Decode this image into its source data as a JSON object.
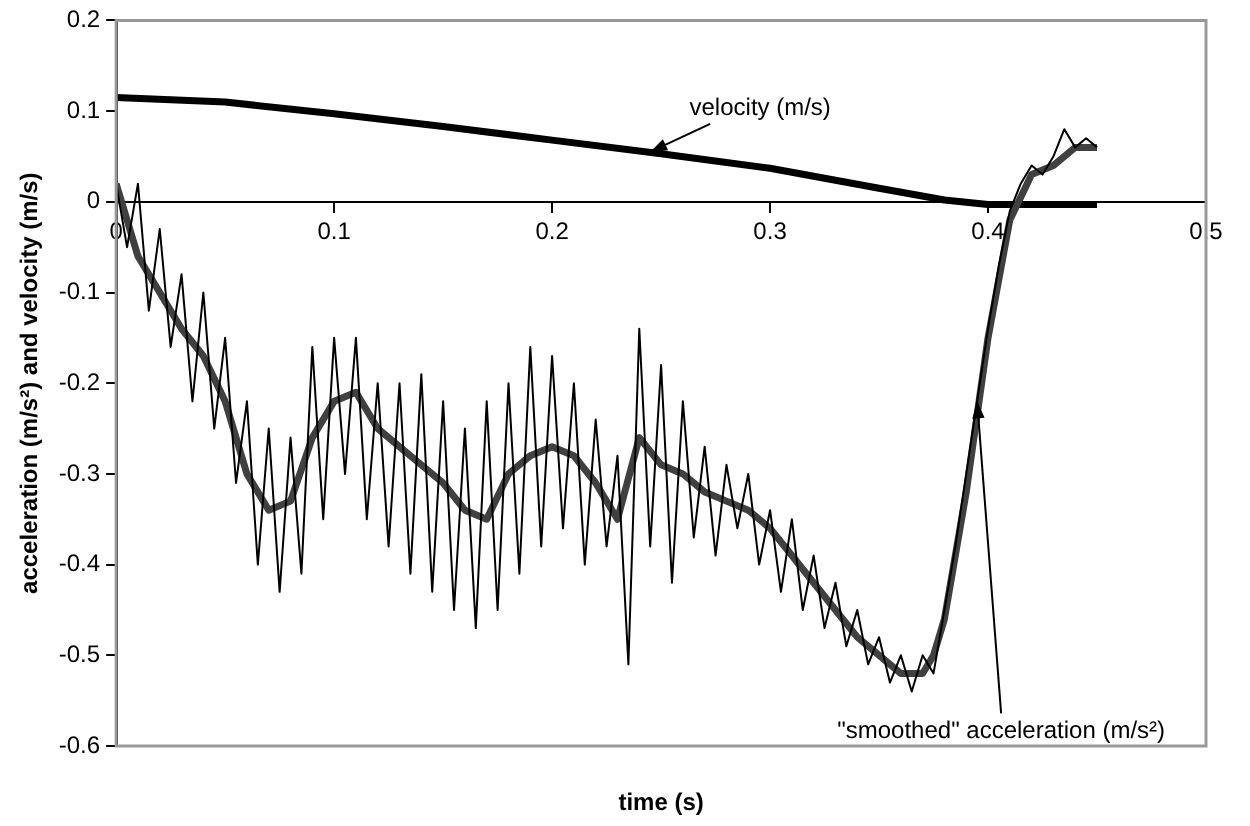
{
  "chart_data": {
    "type": "line",
    "xlabel": "time (s)",
    "ylabel": "acceleration (m/s²) and velocity (m/s)",
    "xlim": [
      0,
      0.5
    ],
    "xticks": [
      0,
      0.1,
      0.2,
      0.3,
      0.4,
      0.5
    ],
    "ylim": [
      -0.6,
      0.2
    ],
    "yticks": [
      -0.6,
      -0.5,
      -0.4,
      -0.3,
      -0.2,
      -0.1,
      0,
      0.1,
      0.2
    ],
    "grid": false,
    "legend": false,
    "marker": "none",
    "line_style": "solid",
    "series": [
      {
        "color": "#000000",
        "x": [
          0,
          0.005,
          0.01,
          0.015,
          0.02,
          0.025,
          0.03,
          0.035,
          0.04,
          0.045,
          0.05,
          0.055,
          0.06,
          0.065,
          0.07,
          0.075,
          0.08,
          0.085,
          0.09,
          0.095,
          0.1,
          0.105,
          0.11,
          0.115,
          0.12,
          0.125,
          0.13,
          0.135,
          0.14,
          0.145,
          0.15,
          0.155,
          0.16,
          0.165,
          0.17,
          0.175,
          0.18,
          0.185,
          0.19,
          0.195,
          0.2,
          0.205,
          0.21,
          0.215,
          0.22,
          0.225,
          0.23,
          0.235,
          0.24,
          0.245,
          0.25,
          0.255,
          0.26,
          0.265,
          0.27,
          0.275,
          0.28,
          0.285,
          0.29,
          0.295,
          0.3,
          0.305,
          0.31,
          0.315,
          0.32,
          0.325,
          0.33,
          0.335,
          0.34,
          0.345,
          0.35,
          0.355,
          0.36,
          0.365,
          0.37,
          0.375,
          0.38,
          0.385,
          0.39,
          0.395,
          0.4,
          0.405,
          0.41,
          0.415,
          0.42,
          0.425,
          0.43,
          0.435,
          0.44,
          0.445,
          0.45
        ],
        "values": [
          0.02,
          -0.05,
          0.02,
          -0.12,
          -0.03,
          -0.16,
          -0.08,
          -0.22,
          -0.1,
          -0.25,
          -0.15,
          -0.31,
          -0.22,
          -0.4,
          -0.25,
          -0.43,
          -0.26,
          -0.41,
          -0.16,
          -0.35,
          -0.15,
          -0.3,
          -0.15,
          -0.35,
          -0.2,
          -0.38,
          -0.2,
          -0.41,
          -0.19,
          -0.43,
          -0.22,
          -0.45,
          -0.25,
          -0.47,
          -0.22,
          -0.45,
          -0.2,
          -0.41,
          -0.16,
          -0.38,
          -0.17,
          -0.36,
          -0.2,
          -0.4,
          -0.24,
          -0.38,
          -0.28,
          -0.51,
          -0.14,
          -0.38,
          -0.18,
          -0.42,
          -0.22,
          -0.37,
          -0.27,
          -0.39,
          -0.29,
          -0.36,
          -0.3,
          -0.4,
          -0.34,
          -0.43,
          -0.35,
          -0.45,
          -0.39,
          -0.47,
          -0.42,
          -0.49,
          -0.45,
          -0.51,
          -0.48,
          -0.53,
          -0.5,
          -0.54,
          -0.5,
          -0.52,
          -0.45,
          -0.38,
          -0.3,
          -0.22,
          -0.14,
          -0.07,
          -0.01,
          0.02,
          0.04,
          0.03,
          0.05,
          0.08,
          0.06,
          0.07,
          0.06
        ]
      },
      {
        "color": "#404040",
        "x": [
          0,
          0.01,
          0.02,
          0.03,
          0.04,
          0.05,
          0.06,
          0.07,
          0.08,
          0.09,
          0.1,
          0.11,
          0.12,
          0.13,
          0.14,
          0.15,
          0.16,
          0.17,
          0.18,
          0.19,
          0.2,
          0.21,
          0.22,
          0.23,
          0.24,
          0.25,
          0.26,
          0.27,
          0.28,
          0.29,
          0.3,
          0.31,
          0.32,
          0.33,
          0.34,
          0.35,
          0.36,
          0.37,
          0.375,
          0.38,
          0.39,
          0.4,
          0.41,
          0.42,
          0.43,
          0.44,
          0.45
        ],
        "values": [
          0.02,
          -0.06,
          -0.1,
          -0.14,
          -0.17,
          -0.22,
          -0.3,
          -0.34,
          -0.33,
          -0.26,
          -0.22,
          -0.21,
          -0.25,
          -0.27,
          -0.29,
          -0.31,
          -0.34,
          -0.35,
          -0.3,
          -0.28,
          -0.27,
          -0.28,
          -0.31,
          -0.35,
          -0.26,
          -0.29,
          -0.3,
          -0.32,
          -0.33,
          -0.34,
          -0.36,
          -0.39,
          -0.42,
          -0.45,
          -0.48,
          -0.5,
          -0.52,
          -0.52,
          -0.5,
          -0.46,
          -0.32,
          -0.15,
          -0.02,
          0.03,
          0.04,
          0.06,
          0.06
        ]
      },
      {
        "color": "#000000",
        "x": [
          0,
          0.05,
          0.1,
          0.15,
          0.2,
          0.25,
          0.3,
          0.35,
          0.38,
          0.4,
          0.45
        ],
        "values": [
          0.115,
          0.11,
          0.097,
          0.083,
          0.068,
          0.053,
          0.037,
          0.015,
          0.002,
          -0.003,
          -0.003
        ]
      }
    ],
    "annotations": [
      {
        "text": "velocity (m/s)",
        "x": 0.245,
        "y": 0.055
      },
      {
        "text": "\"smoothed\" acceleration (m/s²)",
        "x": 0.395,
        "y": -0.22
      }
    ]
  }
}
